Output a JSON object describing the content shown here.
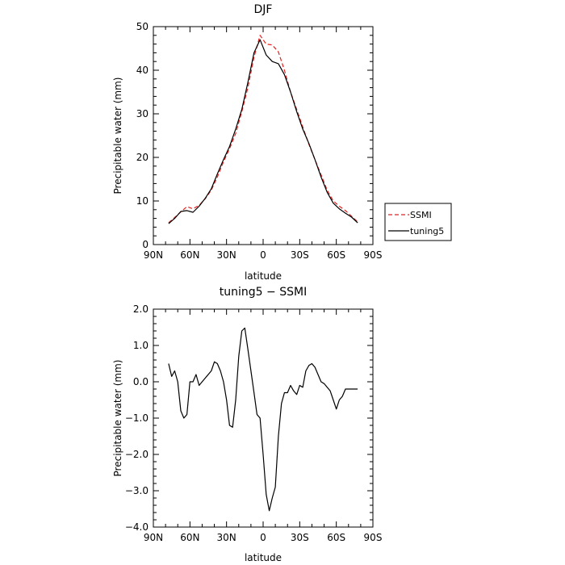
{
  "chart_data": [
    {
      "type": "line",
      "title": "DJF",
      "xlabel": "latitude",
      "ylabel": "Precipitable water (mm)",
      "xlim": [
        -90,
        90
      ],
      "ylim": [
        0,
        50
      ],
      "x_ticks": [
        -90,
        -60,
        -30,
        0,
        30,
        60,
        90
      ],
      "x_tick_labels": [
        "90N",
        "60N",
        "30N",
        "0",
        "30S",
        "60S",
        "90S"
      ],
      "y_ticks": [
        0,
        10,
        20,
        30,
        40,
        50
      ],
      "y_tick_labels": [
        "0",
        "10",
        "20",
        "30",
        "40",
        "50"
      ],
      "grid": false,
      "legend_position": "right",
      "series": [
        {
          "name": "SSMI",
          "color": "#e8201c",
          "dash": "dashed",
          "x": [
            -77.5,
            -72.5,
            -67.5,
            -62.5,
            -57.5,
            -52.5,
            -47.5,
            -42.5,
            -37.5,
            -32.5,
            -27.5,
            -22.5,
            -17.5,
            -12.5,
            -7.5,
            -2.5,
            2.5,
            7.5,
            12.5,
            17.5,
            22.5,
            27.5,
            32.5,
            37.5,
            42.5,
            47.5,
            52.5,
            57.5,
            62.5,
            67.5,
            72.5,
            77.5
          ],
          "y": [
            5.0,
            6.2,
            7.5,
            8.7,
            8.2,
            9.0,
            10.5,
            12.5,
            15.5,
            19.0,
            22.0,
            25.5,
            30.5,
            36.0,
            43.0,
            48.0,
            46.0,
            45.8,
            44.2,
            40.0,
            35.0,
            31.0,
            27.0,
            23.0,
            19.5,
            16.0,
            12.5,
            10.0,
            8.8,
            7.8,
            6.5,
            5.2
          ]
        },
        {
          "name": "tuning5",
          "color": "#000000",
          "dash": "solid",
          "x": [
            -77.5,
            -72.5,
            -67.5,
            -62.5,
            -57.5,
            -52.5,
            -47.5,
            -42.5,
            -37.5,
            -32.5,
            -27.5,
            -22.5,
            -17.5,
            -12.5,
            -7.5,
            -2.5,
            2.5,
            7.5,
            12.5,
            17.5,
            22.5,
            27.5,
            32.5,
            37.5,
            42.5,
            47.5,
            52.5,
            57.5,
            62.5,
            67.5,
            72.5,
            77.5
          ],
          "y": [
            4.8,
            6.0,
            7.6,
            7.8,
            7.4,
            8.8,
            10.6,
            12.8,
            16.2,
            19.5,
            22.5,
            26.5,
            31.0,
            37.2,
            44.0,
            47.0,
            43.5,
            42.0,
            41.5,
            39.0,
            35.0,
            30.5,
            26.5,
            23.2,
            19.5,
            15.5,
            12.0,
            9.5,
            8.2,
            7.2,
            6.3,
            5.0
          ]
        }
      ]
    },
    {
      "type": "line",
      "title": "tuning5 − SSMI",
      "xlabel": "latitude",
      "ylabel": "Precipitable water (mm)",
      "xlim": [
        -90,
        90
      ],
      "ylim": [
        -4.0,
        2.0
      ],
      "x_ticks": [
        -90,
        -60,
        -30,
        0,
        30,
        60,
        90
      ],
      "x_tick_labels": [
        "90N",
        "60N",
        "30N",
        "0",
        "30S",
        "60S",
        "90S"
      ],
      "y_ticks": [
        -4.0,
        -3.0,
        -2.0,
        -1.0,
        0.0,
        1.0,
        2.0
      ],
      "y_tick_labels": [
        "−4.0",
        "−3.0",
        "−2.0",
        "−1.0",
        "0.0",
        "1.0",
        "2.0"
      ],
      "grid": false,
      "series": [
        {
          "color": "#000000",
          "dash": "solid",
          "x": [
            -77.5,
            -75.0,
            -72.5,
            -70.0,
            -67.5,
            -65.0,
            -62.5,
            -60.0,
            -57.5,
            -55.0,
            -52.5,
            -50.0,
            -47.5,
            -42.5,
            -40.0,
            -37.5,
            -35.0,
            -32.5,
            -30.0,
            -27.5,
            -25.0,
            -22.5,
            -20.0,
            -17.5,
            -15.0,
            -12.5,
            -10.0,
            -7.5,
            -5.0,
            -2.5,
            0.0,
            2.5,
            5.0,
            7.5,
            10.0,
            12.5,
            15.0,
            17.5,
            20.0,
            22.5,
            25.0,
            27.5,
            30.0,
            32.5,
            35.0,
            37.5,
            40.0,
            42.5,
            45.0,
            47.5,
            50.0,
            52.5,
            55.0,
            57.5,
            60.0,
            62.5,
            65.0,
            67.5,
            70.0,
            72.5,
            75.0,
            77.5
          ],
          "y": [
            0.5,
            0.15,
            0.3,
            0.0,
            -0.8,
            -1.0,
            -0.9,
            0.0,
            0.0,
            0.2,
            -0.1,
            0.0,
            0.1,
            0.3,
            0.55,
            0.5,
            0.3,
            0.0,
            -0.5,
            -1.2,
            -1.25,
            -0.5,
            0.7,
            1.4,
            1.48,
            0.9,
            0.3,
            -0.3,
            -0.9,
            -1.0,
            -2.0,
            -3.1,
            -3.55,
            -3.2,
            -2.9,
            -1.5,
            -0.6,
            -0.3,
            -0.3,
            -0.1,
            -0.25,
            -0.35,
            -0.1,
            -0.15,
            0.3,
            0.45,
            0.5,
            0.4,
            0.2,
            0.0,
            -0.05,
            -0.15,
            -0.25,
            -0.5,
            -0.75,
            -0.5,
            -0.4,
            -0.2,
            -0.2,
            -0.2,
            -0.2,
            -0.2
          ]
        }
      ]
    }
  ]
}
